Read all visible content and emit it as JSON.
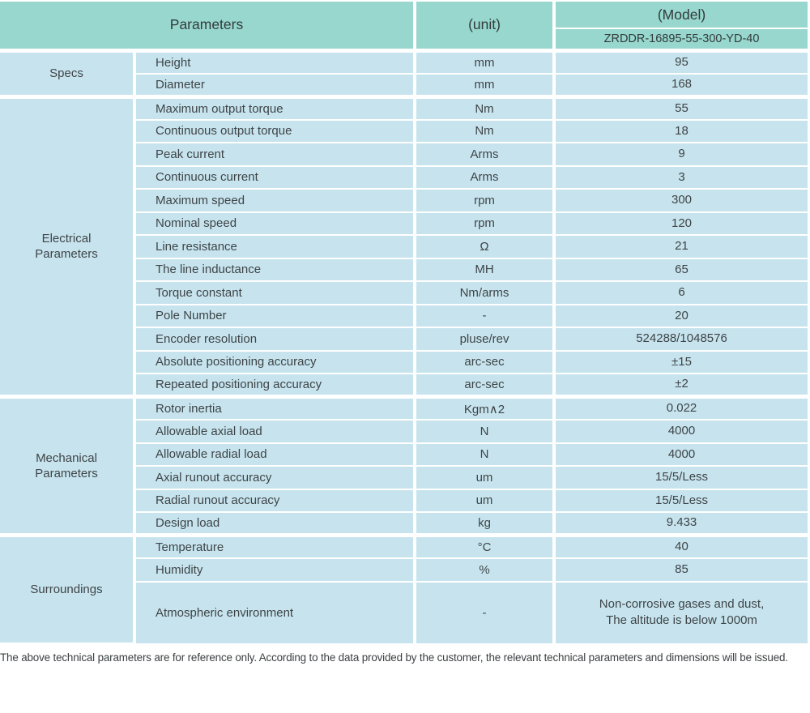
{
  "colors": {
    "header_bg": "#97d7cd",
    "cell_bg": "#c7e4ee",
    "divider": "#ffffff",
    "text": "#3e4447"
  },
  "table": {
    "header": {
      "parameters": "Parameters",
      "unit": "(unit)",
      "model": "(Model)",
      "model_number": "ZRDDR-16895-55-300-YD-40"
    },
    "sections": [
      {
        "name": "Specs",
        "rows": [
          {
            "param": "Height",
            "unit": "mm",
            "value": "95"
          },
          {
            "param": "Diameter",
            "unit": "mm",
            "value": "168"
          }
        ]
      },
      {
        "name": "Electrical\nParameters",
        "rows": [
          {
            "param": "Maximum output torque",
            "unit": "Nm",
            "value": "55"
          },
          {
            "param": "Continuous output torque",
            "unit": "Nm",
            "value": "18"
          },
          {
            "param": "Peak current",
            "unit": "Arms",
            "value": "9"
          },
          {
            "param": "Continuous current",
            "unit": "Arms",
            "value": "3"
          },
          {
            "param": "Maximum speed",
            "unit": "rpm",
            "value": "300"
          },
          {
            "param": "Nominal speed",
            "unit": "rpm",
            "value": "120"
          },
          {
            "param": "Line resistance",
            "unit": "Ω",
            "value": "21"
          },
          {
            "param": "The line inductance",
            "unit": "MH",
            "value": "65"
          },
          {
            "param": "Torque constant",
            "unit": "Nm/arms",
            "value": "6"
          },
          {
            "param": "Pole Number",
            "unit": "-",
            "value": "20"
          },
          {
            "param": "Encoder resolution",
            "unit": "pluse/rev",
            "value": "524288/1048576"
          },
          {
            "param": "Absolute positioning accuracy",
            "unit": "arc-sec",
            "value": "±15"
          },
          {
            "param": "Repeated positioning accuracy",
            "unit": "arc-sec",
            "value": "±2"
          }
        ]
      },
      {
        "name": "Mechanical\nParameters",
        "rows": [
          {
            "param": "Rotor inertia",
            "unit": "Kgm∧2",
            "value": "0.022"
          },
          {
            "param": "Allowable axial load",
            "unit": "N",
            "value": "4000"
          },
          {
            "param": "Allowable radial load",
            "unit": "N",
            "value": "4000"
          },
          {
            "param": "Axial runout accuracy",
            "unit": "um",
            "value": "15/5/Less"
          },
          {
            "param": "Radial runout accuracy",
            "unit": "um",
            "value": "15/5/Less"
          },
          {
            "param": "Design load",
            "unit": "kg",
            "value": "9.433"
          }
        ]
      },
      {
        "name": "Surroundings",
        "rows": [
          {
            "param": "Temperature",
            "unit": "°C",
            "value": "40"
          },
          {
            "param": "Humidity",
            "unit": "%",
            "value": "85"
          },
          {
            "param": "Atmospheric environment",
            "unit": "-",
            "value": "Non-corrosive gases and dust,\nThe altitude is below 1000m",
            "tall": true
          }
        ]
      }
    ]
  },
  "footer": {
    "note": "The above technical parameters are for reference only. According to the data provided by the customer, the relevant technical parameters and dimensions will be issued."
  }
}
